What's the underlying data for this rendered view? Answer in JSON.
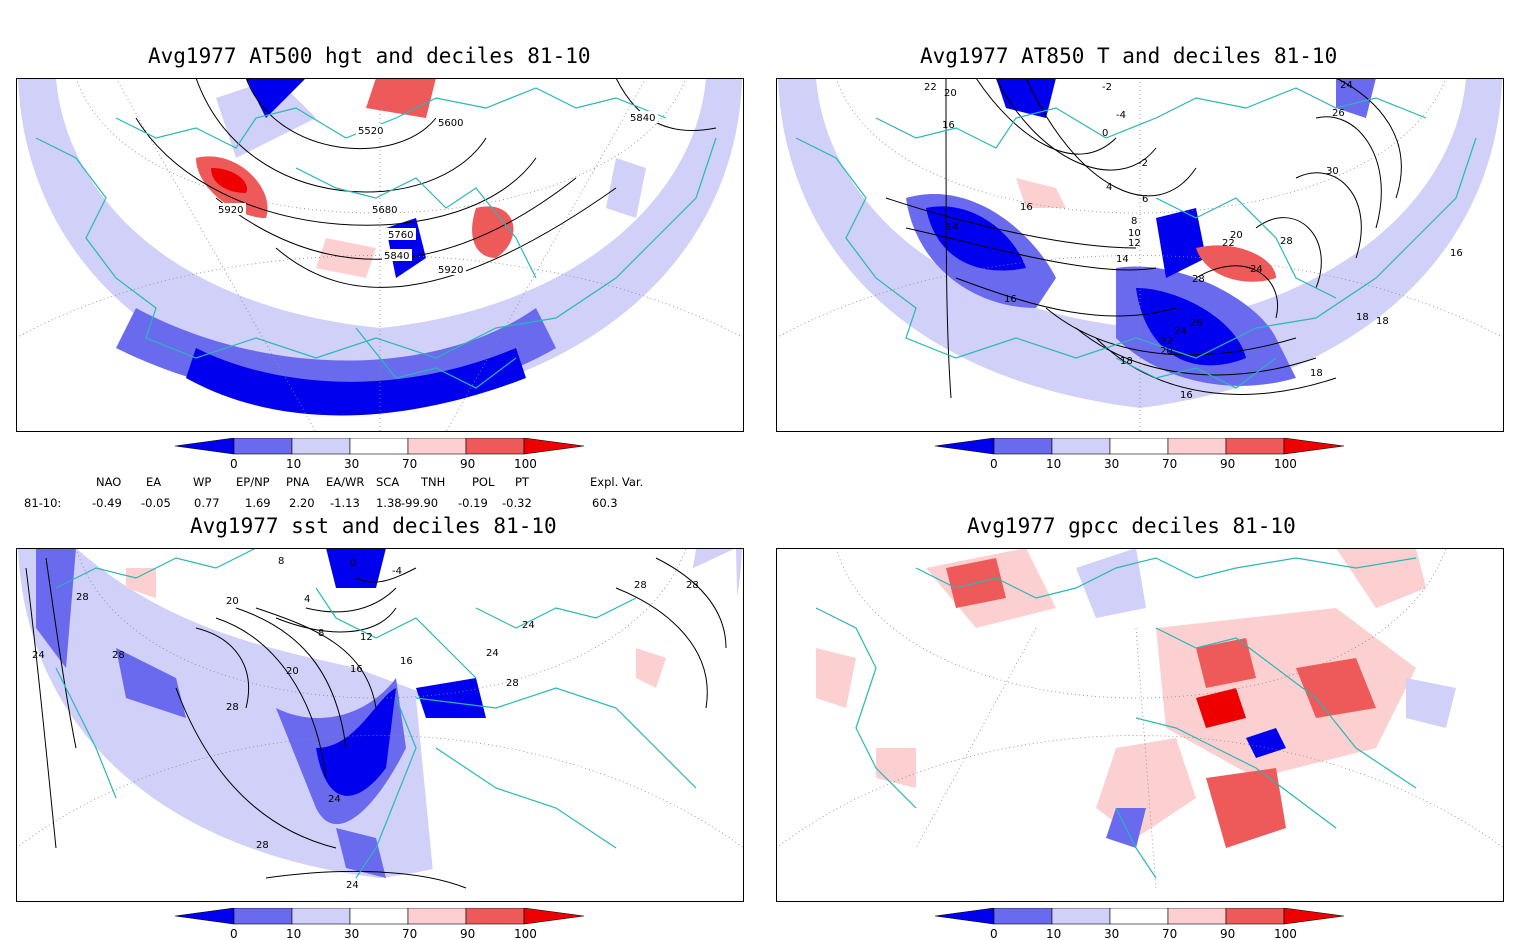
{
  "panels": [
    {
      "title": "Avg1977 AT500 hgt and deciles 81-10",
      "contour_labels": [
        "5520",
        "5600",
        "5840",
        "5920",
        "5680",
        "5760",
        "5840",
        "5920"
      ]
    },
    {
      "title": "Avg1977 AT850 T and deciles 81-10",
      "contour_labels": [
        "22",
        "20",
        "16",
        "14",
        "-2",
        "-4",
        "0",
        "-2",
        "4",
        "6",
        "8",
        "10",
        "12",
        "14",
        "16",
        "16",
        "18",
        "20",
        "22",
        "24",
        "28",
        "28",
        "26",
        "24",
        "22",
        "20",
        "18",
        "16",
        "18",
        "18",
        "16",
        "26",
        "30",
        "24"
      ]
    },
    {
      "title": "Avg1977 sst and deciles 81-10",
      "contour_labels": [
        "28",
        "24",
        "28",
        "28",
        "20",
        "8",
        "4",
        "8",
        "12",
        "16",
        "20",
        "28",
        "24",
        "28",
        "24",
        "16",
        "24",
        "28",
        "28",
        "24",
        "0",
        "-4"
      ]
    },
    {
      "title": "Avg1977 gpcc deciles 81-10",
      "contour_labels": []
    }
  ],
  "colorbar": {
    "tick_labels": [
      "0",
      "10",
      "30",
      "70",
      "90",
      "100"
    ],
    "colors": [
      "#0000ee",
      "#6a6aee",
      "#d0d0f8",
      "#ffffff",
      "#fcd0d0",
      "#ee5a5a",
      "#ee0000"
    ]
  },
  "teleconnections": {
    "headers": [
      "NAO",
      "EA",
      "WP",
      "EP/NP",
      "PNA",
      "EA/WR",
      "SCA",
      "TNH",
      "POL",
      "PT",
      "Expl. Var."
    ],
    "row_label": "81-10:",
    "values": [
      "-0.49",
      "-0.05",
      "0.77",
      "1.69",
      "2.20",
      "-1.13",
      "1.38",
      "-99.90",
      "-0.19",
      "-0.32",
      "60.3"
    ]
  },
  "map_colors": {
    "coast": "#2ab7b7",
    "grid": "#888888"
  }
}
